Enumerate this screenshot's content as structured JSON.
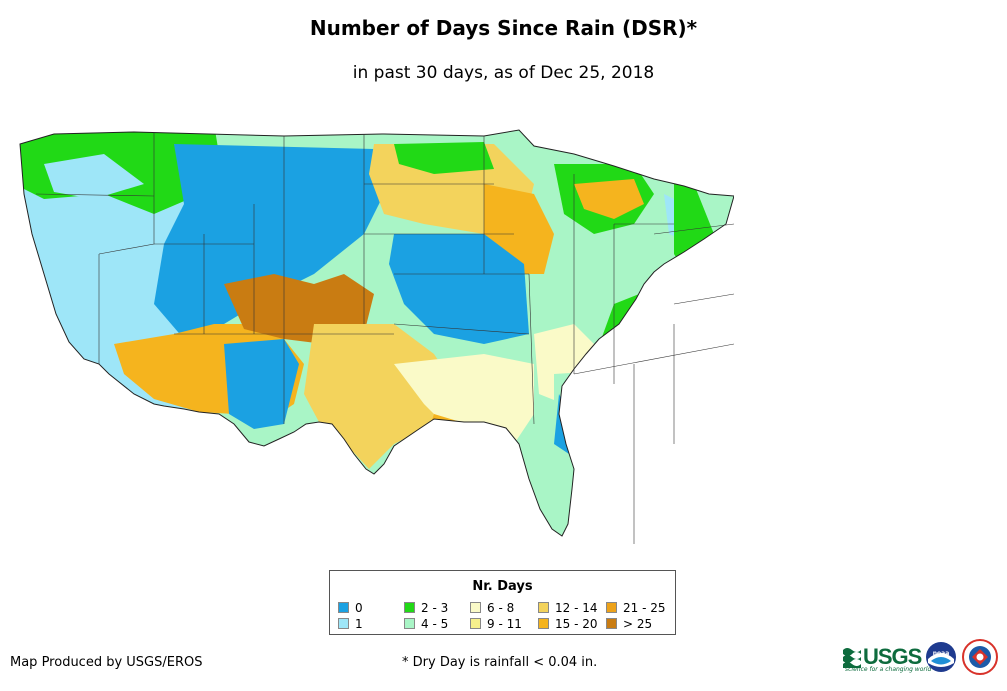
{
  "title": "Number of Days Since Rain (DSR)*",
  "subtitle": "in past 30 days, as of Dec 25, 2018",
  "legend": {
    "title": "Nr. Days",
    "items": [
      {
        "label": "0",
        "color": "#1ba1e2"
      },
      {
        "label": "1",
        "color": "#9ee6f8"
      },
      {
        "label": "2 - 3",
        "color": "#21d916"
      },
      {
        "label": "4 - 5",
        "color": "#a9f5c6"
      },
      {
        "label": "6 - 8",
        "color": "#fafac8"
      },
      {
        "label": "9 - 11",
        "color": "#f6f08c"
      },
      {
        "label": "12 - 14",
        "color": "#f3d35c"
      },
      {
        "label": "15 - 20",
        "color": "#f5b41e"
      },
      {
        "label": "21 - 25",
        "color": "#eda21a"
      },
      {
        "label": "> 25",
        "color": "#c97c12"
      }
    ]
  },
  "credit": "Map Produced by USGS/EROS",
  "footnote": "* Dry Day is rainfall < 0.04 in.",
  "logos": {
    "usgs": "USGS",
    "usgs_tagline": "science for a changing world",
    "noaa": "noaa-logo",
    "nws": "nws-logo"
  }
}
